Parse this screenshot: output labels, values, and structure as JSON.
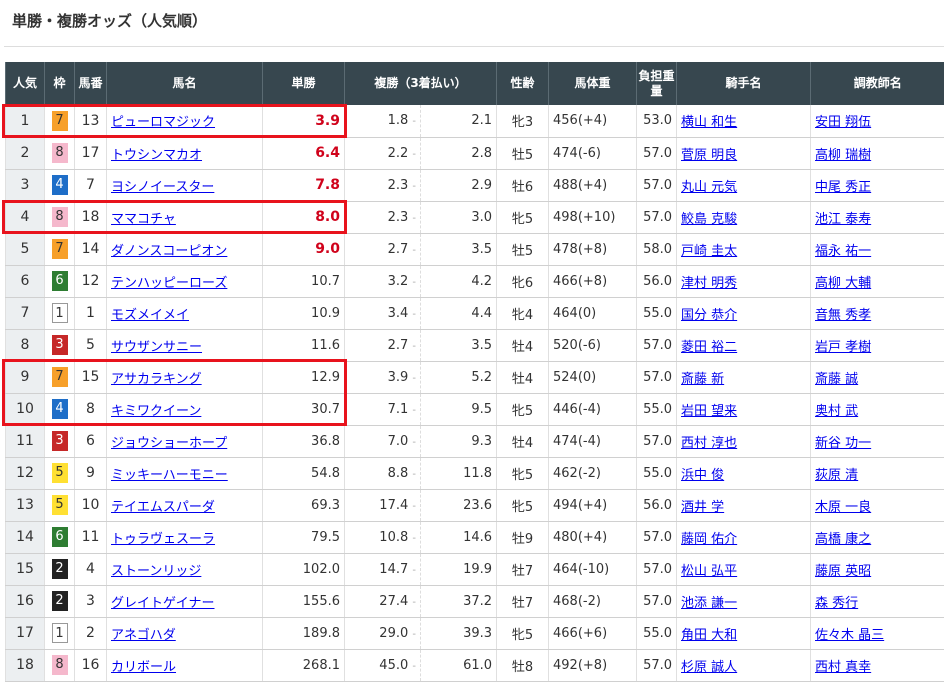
{
  "title": "単勝・複勝オッズ（人気順）",
  "headers": [
    "人気",
    "枠",
    "馬番",
    "馬名",
    "単勝",
    "複勝（3着払い）",
    "性齢",
    "馬体重",
    "負担重量",
    "騎手名",
    "調教師名"
  ],
  "frame_colors": {
    "1": [
      "#ffffff",
      "#333"
    ],
    "2": [
      "#222222",
      "#fff"
    ],
    "3": [
      "#c62828",
      "#fff"
    ],
    "4": [
      "#1e6ec8",
      "#fff"
    ],
    "5": [
      "#ffe033",
      "#333"
    ],
    "6": [
      "#2e7d32",
      "#fff"
    ],
    "7": [
      "#f7a02a",
      "#333"
    ],
    "8": [
      "#f5b8cc",
      "#333"
    ]
  },
  "highlight_color": "#e8131d",
  "rows": [
    [
      "1",
      "7",
      "13",
      "ピューロマジック",
      "3.9",
      "1.8",
      "2.1",
      "牝3",
      "456(+4)",
      "53.0",
      "横山 和生",
      "安田 翔伍"
    ],
    [
      "2",
      "8",
      "17",
      "トウシンマカオ",
      "6.4",
      "2.2",
      "2.8",
      "牡5",
      "474(-6)",
      "57.0",
      "菅原 明良",
      "高柳 瑞樹"
    ],
    [
      "3",
      "4",
      "7",
      "ヨシノイースター",
      "7.8",
      "2.3",
      "2.9",
      "牡6",
      "488(+4)",
      "57.0",
      "丸山 元気",
      "中尾 秀正"
    ],
    [
      "4",
      "8",
      "18",
      "ママコチャ",
      "8.0",
      "2.3",
      "3.0",
      "牝5",
      "498(+10)",
      "57.0",
      "鮫島 克駿",
      "池江 泰寿"
    ],
    [
      "5",
      "7",
      "14",
      "ダノンスコーピオン",
      "9.0",
      "2.7",
      "3.5",
      "牡5",
      "478(+8)",
      "58.0",
      "戸崎 圭太",
      "福永 祐一"
    ],
    [
      "6",
      "6",
      "12",
      "テンハッピーローズ",
      "10.7",
      "3.2",
      "4.2",
      "牝6",
      "466(+8)",
      "56.0",
      "津村 明秀",
      "高柳 大輔"
    ],
    [
      "7",
      "1",
      "1",
      "モズメイメイ",
      "10.9",
      "3.4",
      "4.4",
      "牝4",
      "464(0)",
      "55.0",
      "国分 恭介",
      "音無 秀孝"
    ],
    [
      "8",
      "3",
      "5",
      "サウザンサニー",
      "11.6",
      "2.7",
      "3.5",
      "牡4",
      "520(-6)",
      "57.0",
      "菱田 裕二",
      "岩戸 孝樹"
    ],
    [
      "9",
      "7",
      "15",
      "アサカラキング",
      "12.9",
      "3.9",
      "5.2",
      "牡4",
      "524(0)",
      "57.0",
      "斎藤 新",
      "斎藤 誠"
    ],
    [
      "10",
      "4",
      "8",
      "キミワクイーン",
      "30.7",
      "7.1",
      "9.5",
      "牝5",
      "446(-4)",
      "55.0",
      "岩田 望来",
      "奥村 武"
    ],
    [
      "11",
      "3",
      "6",
      "ジョウショーホープ",
      "36.8",
      "7.0",
      "9.3",
      "牡4",
      "474(-4)",
      "57.0",
      "西村 淳也",
      "新谷 功一"
    ],
    [
      "12",
      "5",
      "9",
      "ミッキーハーモニー",
      "54.8",
      "8.8",
      "11.8",
      "牝5",
      "462(-2)",
      "55.0",
      "浜中 俊",
      "荻原 清"
    ],
    [
      "13",
      "5",
      "10",
      "テイエムスパーダ",
      "69.3",
      "17.4",
      "23.6",
      "牝5",
      "494(+4)",
      "56.0",
      "酒井 学",
      "木原 一良"
    ],
    [
      "14",
      "6",
      "11",
      "トゥラヴェスーラ",
      "79.5",
      "10.8",
      "14.6",
      "牡9",
      "480(+4)",
      "57.0",
      "藤岡 佑介",
      "高橋 康之"
    ],
    [
      "15",
      "2",
      "4",
      "ストーンリッジ",
      "102.0",
      "14.7",
      "19.9",
      "牡7",
      "464(-10)",
      "57.0",
      "松山 弘平",
      "藤原 英昭"
    ],
    [
      "16",
      "2",
      "3",
      "グレイトゲイナー",
      "155.6",
      "27.4",
      "37.2",
      "牡7",
      "468(-2)",
      "57.0",
      "池添 謙一",
      "森 秀行"
    ],
    [
      "17",
      "1",
      "2",
      "アネゴハダ",
      "189.8",
      "29.0",
      "39.3",
      "牝5",
      "466(+6)",
      "55.0",
      "角田 大和",
      "佐々木 晶三"
    ],
    [
      "18",
      "8",
      "16",
      "カリボール",
      "268.1",
      "45.0",
      "61.0",
      "牡8",
      "492(+8)",
      "57.0",
      "杉原 誠人",
      "西村 真幸"
    ]
  ]
}
